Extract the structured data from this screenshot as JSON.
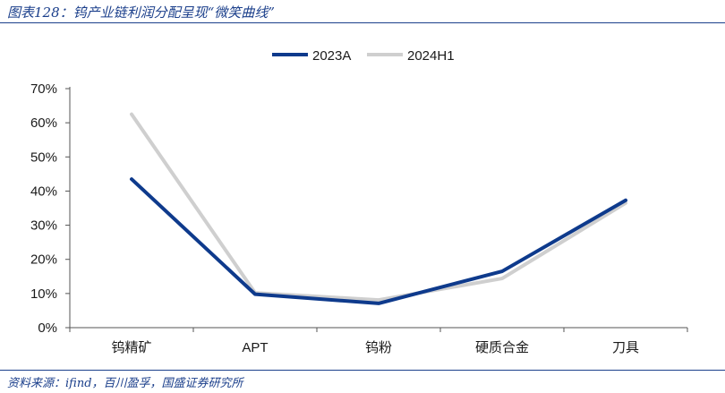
{
  "figure": {
    "title": "图表128：钨产业链利润分配呈现“微笑曲线”",
    "source": "资料来源：ifind，百川盈孚，国盛证券研究所"
  },
  "chart_data": {
    "type": "line",
    "categories": [
      "钨精矿",
      "APT",
      "钨粉",
      "硬质合金",
      "刀具"
    ],
    "series": [
      {
        "name": "2023A",
        "color": "#0e3a8c",
        "values": [
          0.435,
          0.098,
          0.071,
          0.165,
          0.373
        ]
      },
      {
        "name": "2024H1",
        "color": "#cfcfcf",
        "values": [
          0.625,
          0.102,
          0.081,
          0.144,
          0.365
        ]
      }
    ],
    "yticks": [
      "0%",
      "10%",
      "20%",
      "30%",
      "40%",
      "50%",
      "60%",
      "70%"
    ],
    "ylim": [
      0,
      0.7
    ],
    "grid": false,
    "legend_position": "top-center"
  }
}
